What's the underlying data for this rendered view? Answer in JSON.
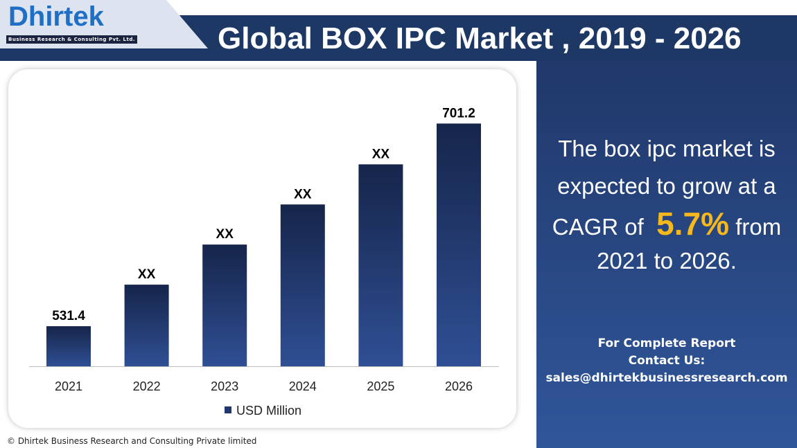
{
  "header": {
    "title": "Global BOX IPC Market , 2019 - 2026",
    "logo_text": "Dhirtek",
    "logo_tagline": "Business Research & Consulting Pvt. Ltd."
  },
  "side": {
    "line1": "The box ipc market is",
    "line2": "expected to grow at a",
    "line3a": "CAGR of",
    "cagr": "5.7%",
    "line3b": "from",
    "line4": "2021 to 2026.",
    "contact1": "For Complete Report",
    "contact2": "Contact Us:",
    "email": "sales@dhirtekbusinessresearch.com"
  },
  "footer": "© Dhirtek Business Research and Consulting Private limited",
  "colors": {
    "band": "#1e3866",
    "bar_top": "#16254a",
    "bar_bottom": "#2f4f94",
    "accent": "#f7b81b"
  },
  "chart_data": {
    "type": "bar",
    "title": "Global BOX IPC Market , 2019 - 2026",
    "categories": [
      "2021",
      "2022",
      "2023",
      "2024",
      "2025",
      "2026"
    ],
    "values": [
      531.4,
      566.2,
      599.8,
      633.4,
      667.0,
      701.2
    ],
    "data_labels": [
      "531.4",
      "XX",
      "XX",
      "XX",
      "XX",
      "701.2"
    ],
    "legend": "USD Million",
    "legend_position": "bottom",
    "ylim": [
      497.8,
      720
    ],
    "grid": false,
    "xlabel": "",
    "ylabel": ""
  }
}
